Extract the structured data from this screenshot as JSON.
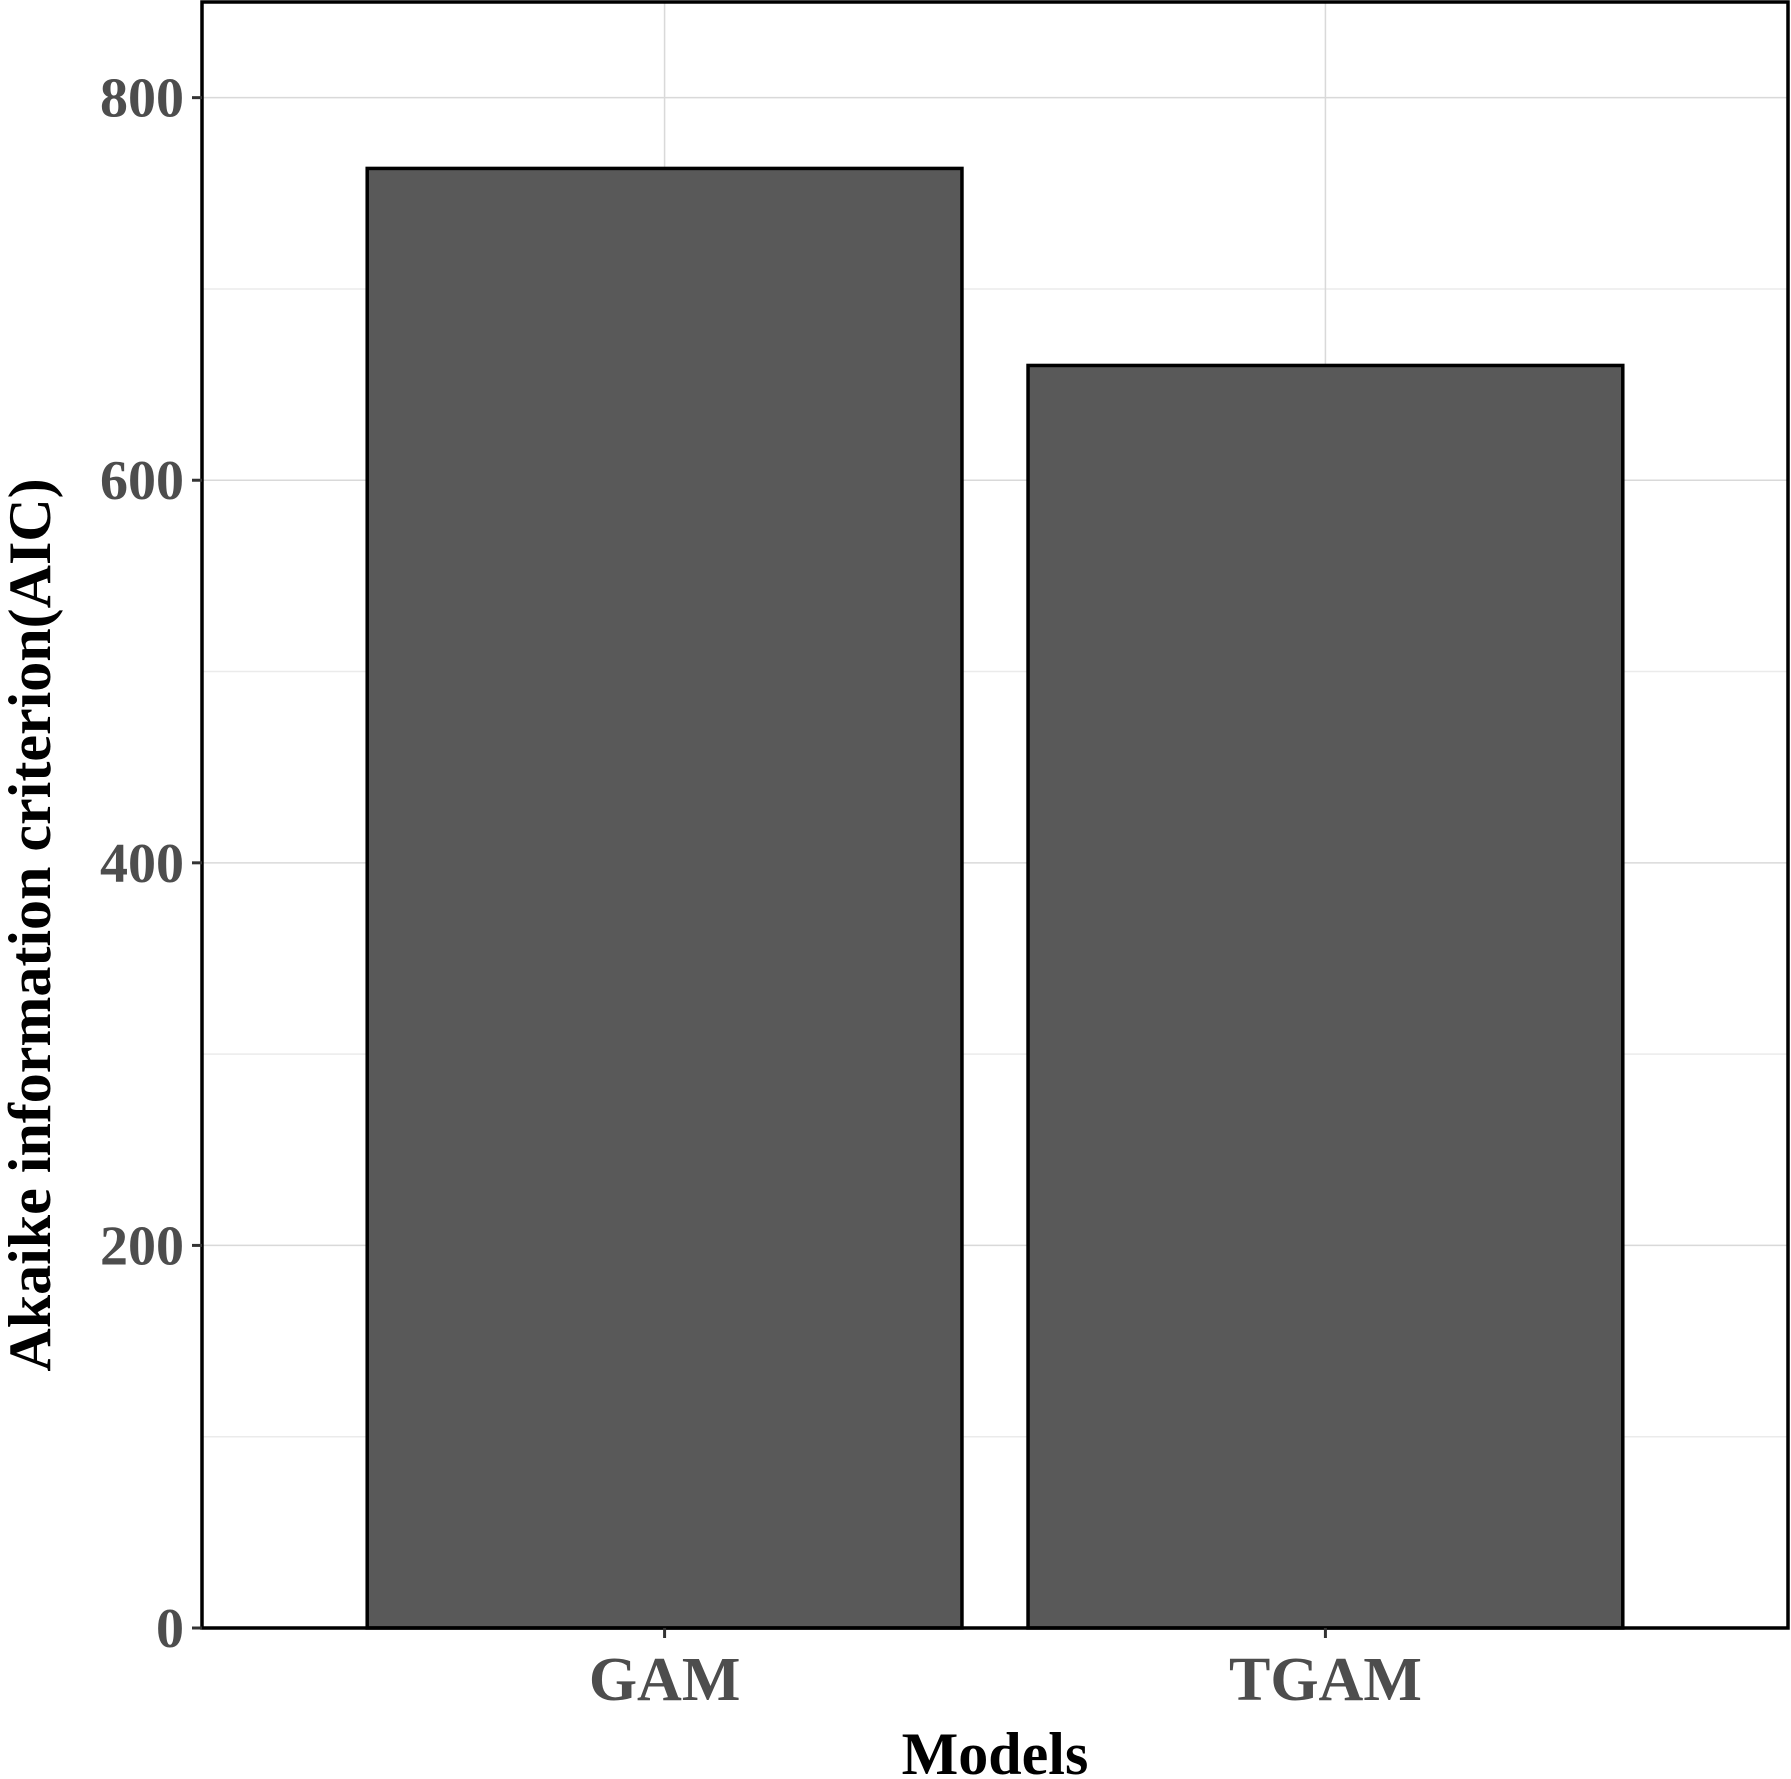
{
  "chart_data": {
    "type": "bar",
    "title": "",
    "xlabel": "Models",
    "ylabel": "Akaike information criterion(AIC)",
    "categories": [
      "GAM",
      "TGAM"
    ],
    "values": [
      763,
      660
    ],
    "ylim": [
      0,
      850
    ],
    "yticks": [
      0,
      200,
      400,
      600,
      800
    ],
    "ytick_labels": [
      "0",
      "200",
      "400",
      "600",
      "800"
    ],
    "grid": true,
    "legend": "none",
    "colors": {
      "bar_fill": "#595959",
      "bar_stroke": "#000000",
      "grid_major": "#d9d9d9",
      "grid_minor": "#ebebeb",
      "panel_border": "#000000",
      "tick_label": "#4d4d4d",
      "axis_title": "#000000"
    }
  }
}
